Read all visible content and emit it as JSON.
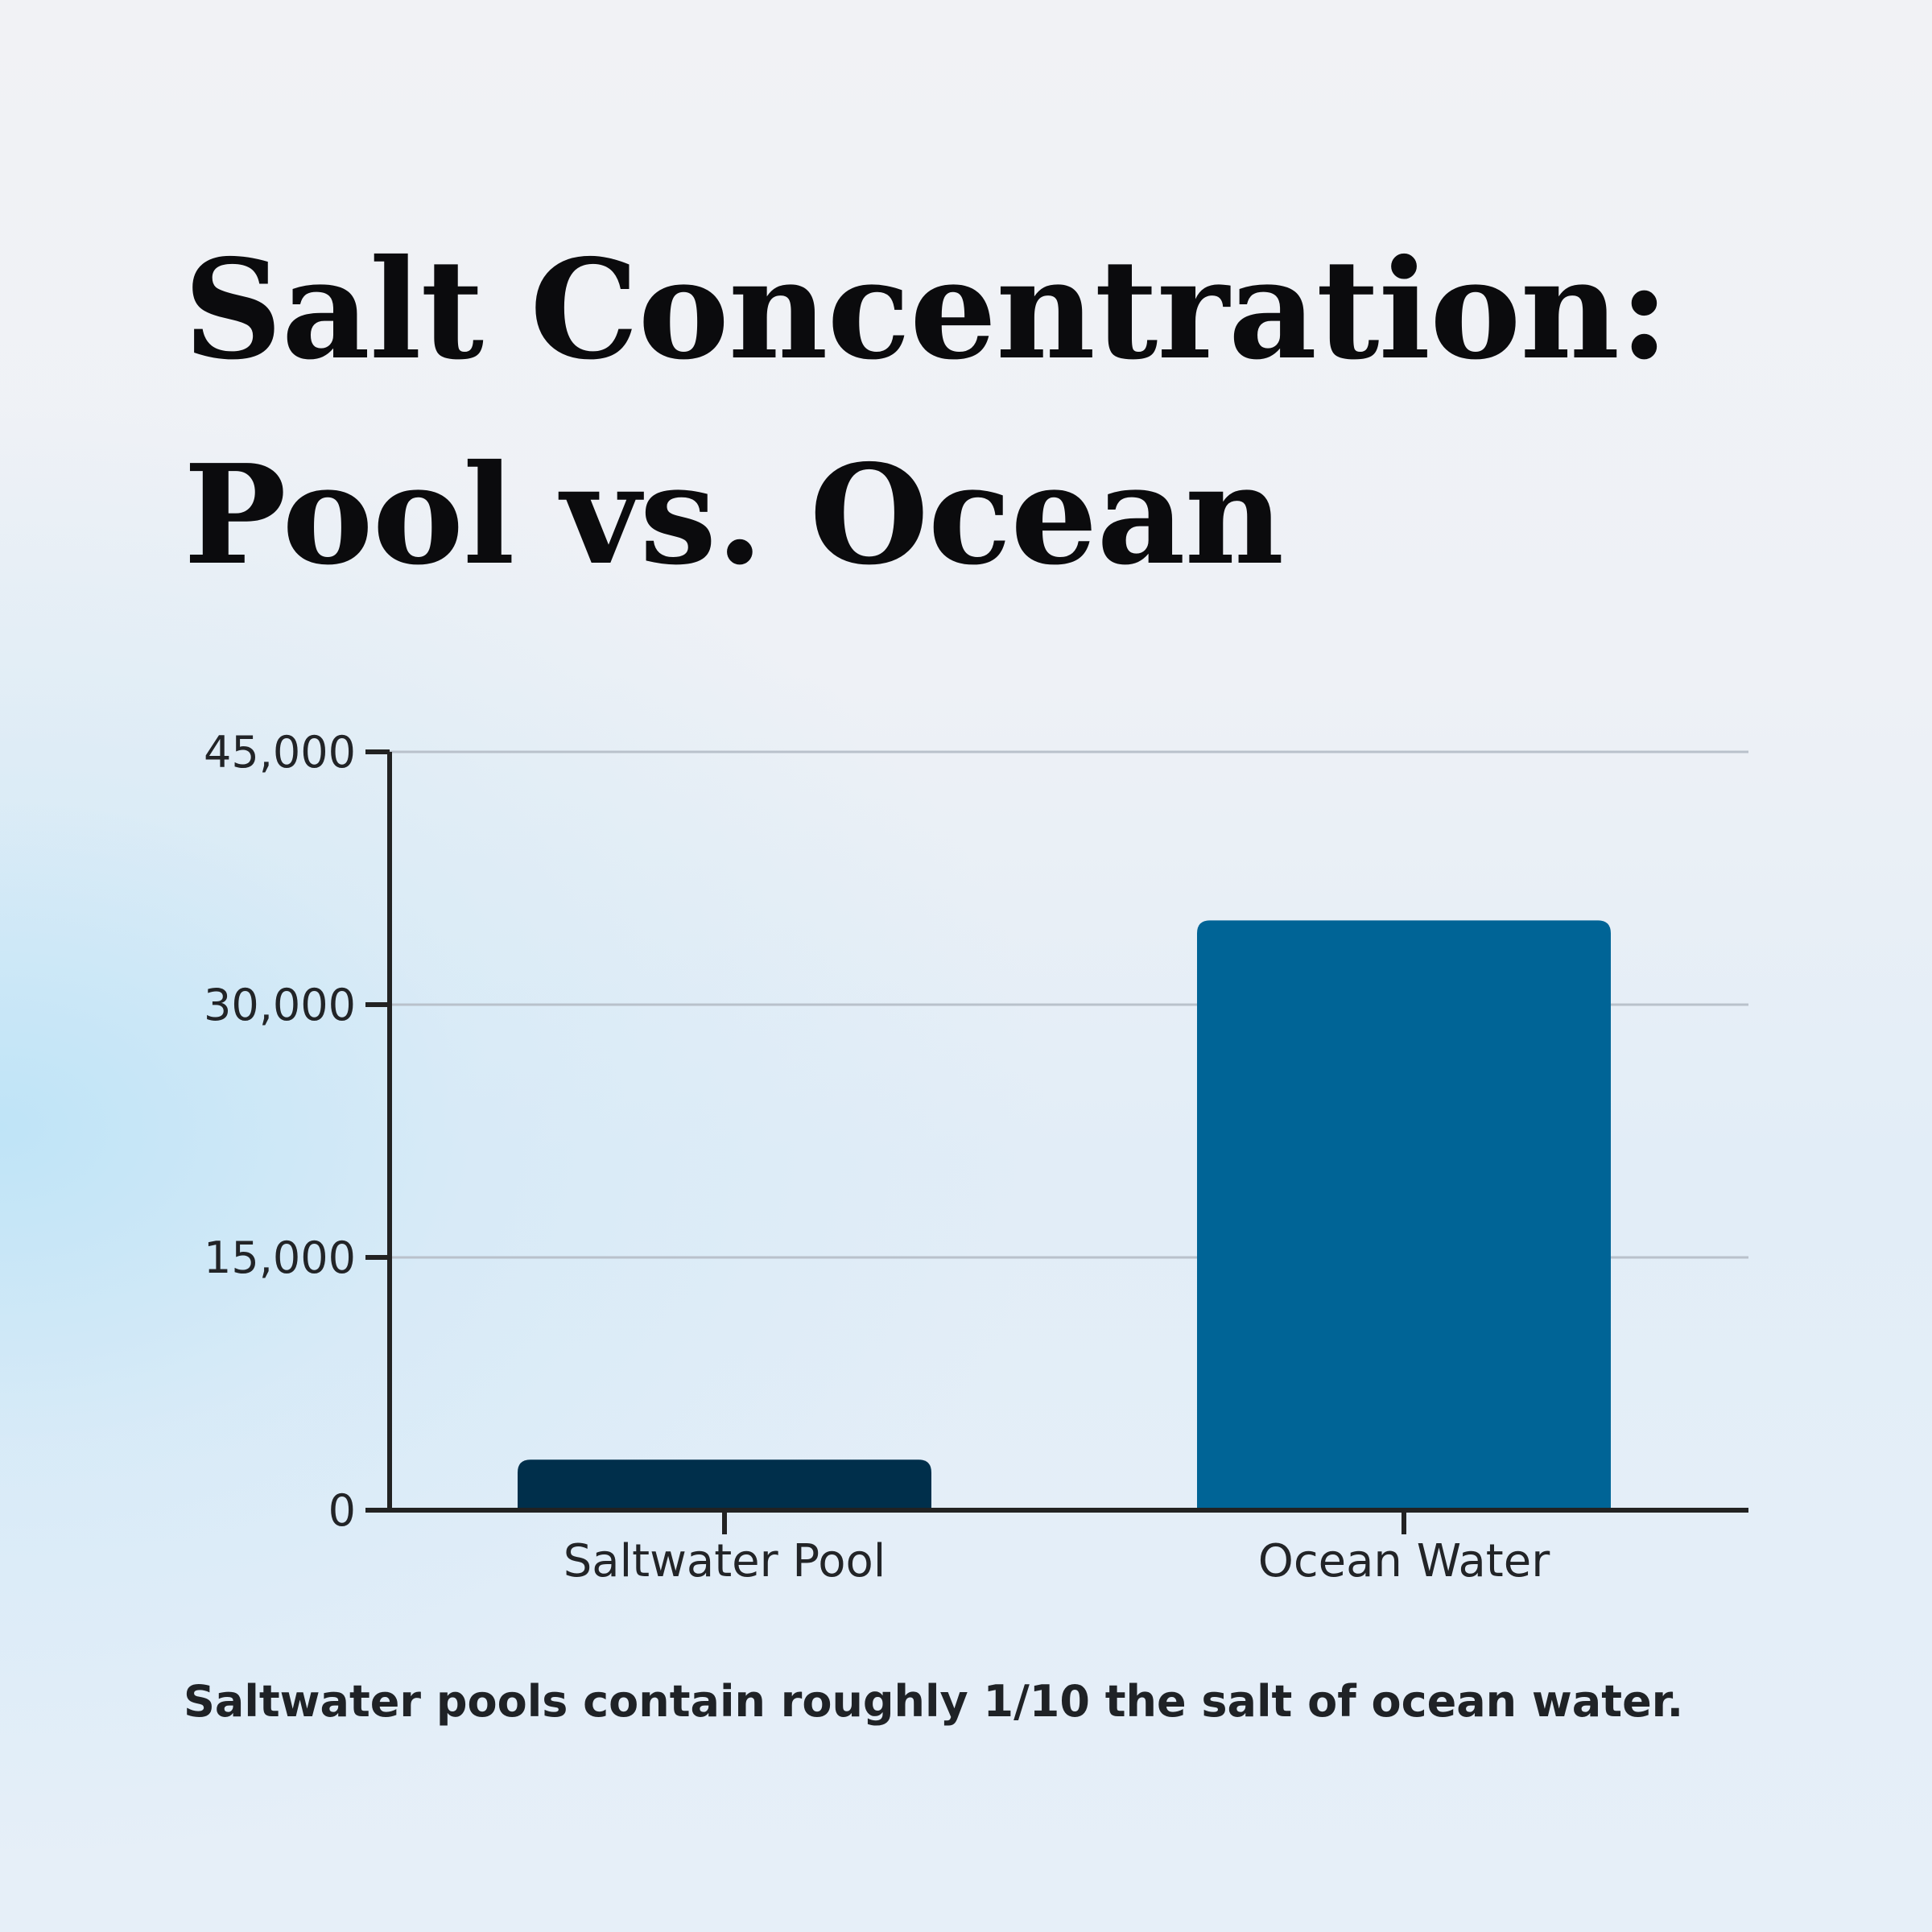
{
  "title_lines": [
    "Salt Concentration:",
    "Pool vs. Ocean"
  ],
  "caption": "Saltwater pools contain roughly 1/10 the salt of ocean water.",
  "chart_data": {
    "type": "bar",
    "title": "Salt Concentration: Pool vs. Ocean",
    "xlabel": "",
    "ylabel": "",
    "categories": [
      "Saltwater Pool",
      "Ocean Water"
    ],
    "values": [
      3000,
      35000
    ],
    "ylim": [
      0,
      45000
    ],
    "yticks": [
      0,
      15000,
      30000,
      45000
    ],
    "ytick_labels": [
      "0",
      "15,000",
      "30,000",
      "45,000"
    ],
    "grid": "horizontal",
    "bar_colors": [
      "#002f4b",
      "#006496"
    ],
    "axis_color": "#222222",
    "grid_color": "#b9c1cb"
  }
}
